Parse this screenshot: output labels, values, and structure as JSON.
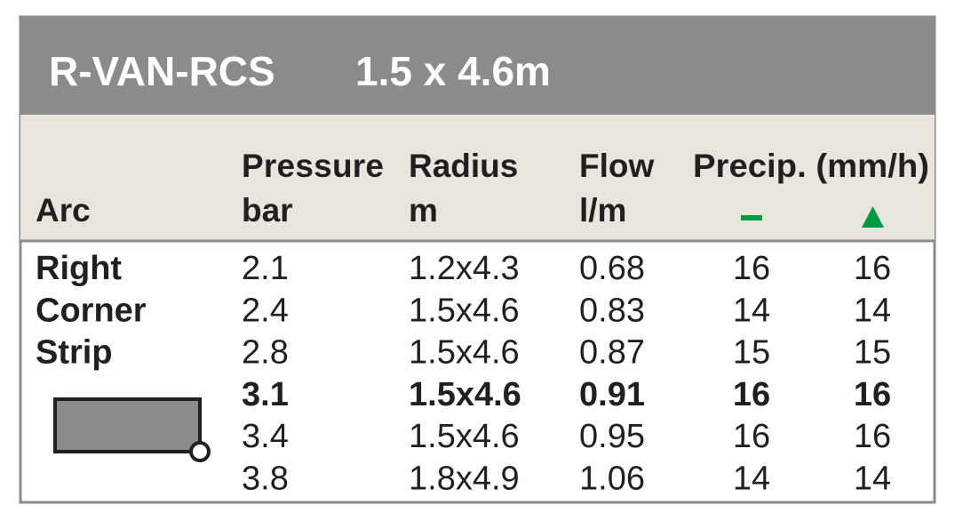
{
  "header": {
    "model": "R-VAN-RCS",
    "size": "1.5 x 4.6m"
  },
  "table": {
    "columns": {
      "arc": "Arc",
      "pressure": [
        "Pressure",
        "bar"
      ],
      "radius": [
        "Radius",
        "m"
      ],
      "flow": [
        "Flow",
        "l/m"
      ],
      "precip": "Precip. (mm/h)"
    },
    "arc_labels": [
      "Right",
      "Corner",
      "Strip"
    ],
    "rows": [
      [
        "2.1",
        "1.2x4.3",
        "0.68",
        "16",
        "16"
      ],
      [
        "2.4",
        "1.5x4.6",
        "0.83",
        "14",
        "14"
      ],
      [
        "2.8",
        "1.5x4.6",
        "0.87",
        "15",
        "15"
      ],
      [
        "3.1",
        "1.5x4.6",
        "0.91",
        "16",
        "16"
      ],
      [
        "3.4",
        "1.5x4.6",
        "0.95",
        "16",
        "16"
      ],
      [
        "3.8",
        "1.8x4.9",
        "1.06",
        "14",
        "14"
      ]
    ]
  }
}
